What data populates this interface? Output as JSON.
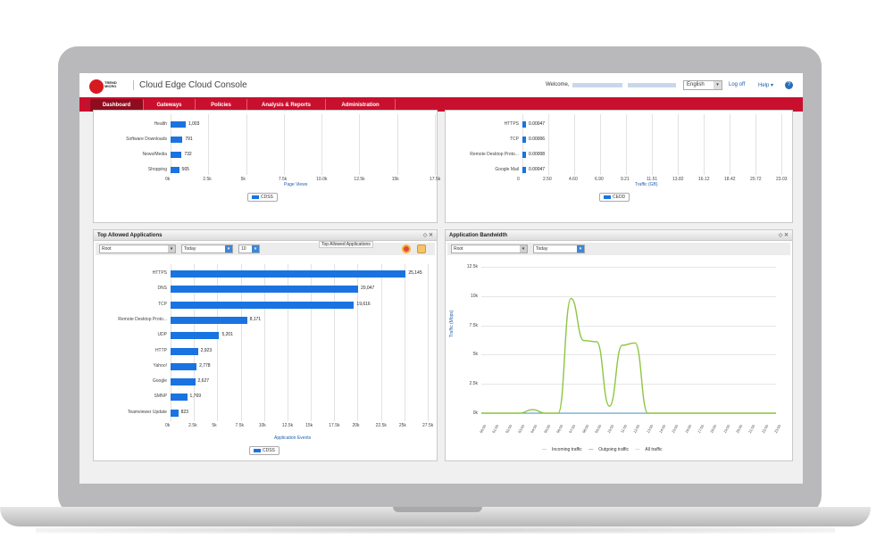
{
  "header": {
    "logo_text": "TREND MICRO",
    "title": "Cloud Edge Cloud Console",
    "welcome_label": "Welcome,",
    "language": "English",
    "logoff": "Log off",
    "help": "Help ▾",
    "help_icon": "?"
  },
  "nav": {
    "tabs": [
      "Dashboard",
      "Gateways",
      "Policies",
      "Analysis & Reports",
      "Administration"
    ]
  },
  "top_left_panel": {
    "rows": [
      {
        "label": "Health",
        "value": "1,003",
        "num": 1003
      },
      {
        "label": "Software Downloads",
        "value": "791",
        "num": 791
      },
      {
        "label": "News/Media",
        "value": "732",
        "num": 732
      },
      {
        "label": "Shopping",
        "value": "565",
        "num": 565
      }
    ],
    "ticks": [
      "0k",
      "2.5k",
      "5k",
      "7.5k",
      "10.0k",
      "12.5k",
      "15k",
      "17.5k"
    ],
    "axis_title": "Page Views",
    "legend": "CDSS"
  },
  "top_right_panel": {
    "rows": [
      {
        "label": "HTTPS",
        "value": "0.00047"
      },
      {
        "label": "TCP",
        "value": "0.00006"
      },
      {
        "label": "Remote Desktop Proto...",
        "value": "0.00008"
      },
      {
        "label": "Google Mail",
        "value": "0.00047"
      }
    ],
    "ticks": [
      "0",
      "2.50",
      "4.60",
      "6.90",
      "9.21",
      "11.51",
      "13.82",
      "16.12",
      "18.42",
      "20.72",
      "23.03"
    ],
    "axis_title": "Traffic (GB)",
    "legend": "CEDD"
  },
  "apps_panel": {
    "title": "Top Allowed Applications",
    "filter": "Root",
    "period": "Today",
    "count": "10",
    "tooltip": "Top Allowed Applications",
    "rows": [
      {
        "label": "HTTPS",
        "value": "25,145",
        "num": 25145
      },
      {
        "label": "DNS",
        "value": "20,047",
        "num": 20047
      },
      {
        "label": "TCP",
        "value": "19,616",
        "num": 19616
      },
      {
        "label": "Remote Desktop Proto...",
        "value": "8,171",
        "num": 8171
      },
      {
        "label": "UDP",
        "value": "5,201",
        "num": 5201
      },
      {
        "label": "HTTP",
        "value": "2,923",
        "num": 2923
      },
      {
        "label": "Yahoo!",
        "value": "2,778",
        "num": 2778
      },
      {
        "label": "Google",
        "value": "2,627",
        "num": 2627
      },
      {
        "label": "SMNP",
        "value": "1,769",
        "num": 1769
      },
      {
        "label": "Teamviewer Update",
        "value": "823",
        "num": 823
      }
    ],
    "ticks": [
      "0k",
      "2.5k",
      "5k",
      "7.5k",
      "10k",
      "12.5k",
      "15k",
      "17.5k",
      "20k",
      "22.5k",
      "25k",
      "27.5k"
    ],
    "axis_max": 27500,
    "axis_title": "Application Events",
    "legend": "CDSS"
  },
  "bandwidth_panel": {
    "title": "Application Bandwidth",
    "filter": "Root",
    "period": "Today",
    "y_label": "Traffic (Mbps)",
    "y_ticks": [
      "12.5k",
      "10k",
      "7.5k",
      "5k",
      "2.5k",
      "0k"
    ],
    "x_ticks": [
      "00:00",
      "01:00",
      "02:00",
      "03:00",
      "04:00",
      "05:00",
      "06:00",
      "07:00",
      "08:00",
      "09:00",
      "10:00",
      "11:00",
      "12:00",
      "13:00",
      "14:00",
      "15:00",
      "16:00",
      "17:00",
      "18:00",
      "19:00",
      "20:00",
      "21:00",
      "22:00",
      "23:00"
    ],
    "legend": [
      "Incoming traffic",
      "Outgoing traffic",
      "All traffic"
    ],
    "colors": {
      "incoming": "#4aa3df",
      "outgoing": "#555555",
      "all": "#8dc63f"
    }
  },
  "chart_data": [
    {
      "type": "bar",
      "categories": [
        "HTTPS",
        "DNS",
        "TCP",
        "Remote Desktop Proto...",
        "UDP",
        "HTTP",
        "Yahoo!",
        "Google",
        "SMNP",
        "Teamviewer Update"
      ],
      "values": [
        25145,
        20047,
        19616,
        8171,
        5201,
        2923,
        2778,
        2627,
        1769,
        823
      ],
      "title": "Top Allowed Applications",
      "xlabel": "Application Events",
      "xlim": [
        0,
        27500
      ]
    },
    {
      "type": "line",
      "title": "Application Bandwidth",
      "ylabel": "Traffic (Mbps)",
      "ylim": [
        0,
        12500
      ],
      "x": [
        "00:00",
        "01:00",
        "02:00",
        "03:00",
        "04:00",
        "05:00",
        "06:00",
        "07:00",
        "08:00",
        "09:00",
        "10:00",
        "11:00",
        "12:00",
        "13:00",
        "14:00",
        "15:00",
        "16:00",
        "17:00",
        "18:00",
        "19:00",
        "20:00",
        "21:00",
        "22:00",
        "23:00"
      ],
      "series": [
        {
          "name": "All traffic",
          "values": [
            0,
            0,
            0,
            0,
            300,
            0,
            0,
            9800,
            6200,
            6100,
            600,
            5800,
            6000,
            0,
            0,
            0,
            0,
            0,
            0,
            0,
            0,
            0,
            0,
            0
          ]
        },
        {
          "name": "Incoming traffic",
          "values": [
            0,
            0,
            0,
            0,
            0,
            0,
            0,
            0,
            0,
            0,
            0,
            0,
            0,
            0,
            0,
            0,
            0,
            0,
            0,
            0,
            0,
            0,
            0,
            0
          ]
        },
        {
          "name": "Outgoing traffic",
          "values": [
            0,
            0,
            0,
            0,
            0,
            0,
            0,
            0,
            0,
            0,
            0,
            0,
            0,
            0,
            0,
            0,
            0,
            0,
            0,
            0,
            0,
            0,
            0,
            0
          ]
        }
      ]
    }
  ]
}
